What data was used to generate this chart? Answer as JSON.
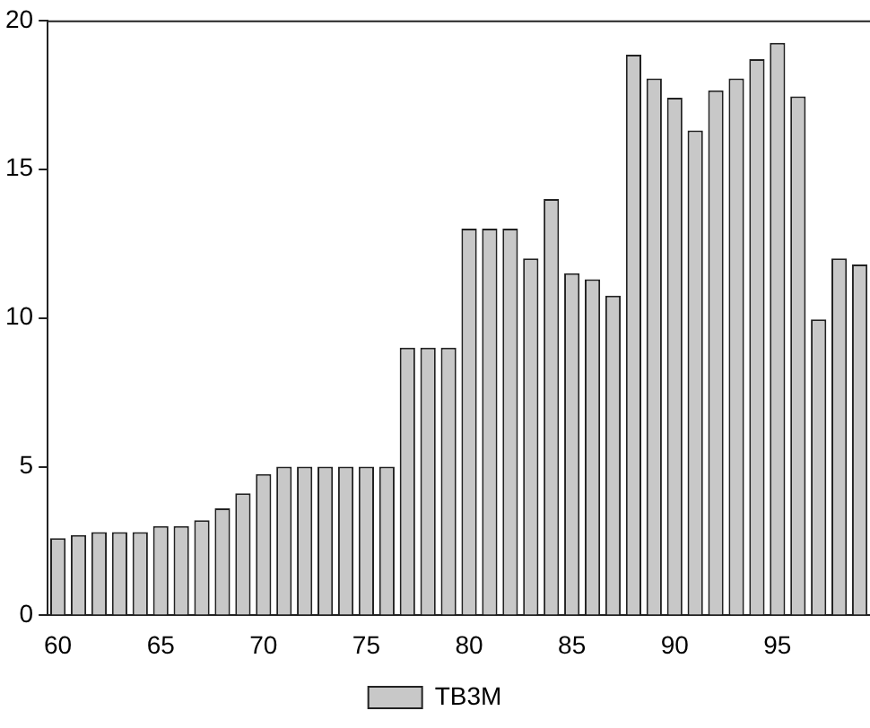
{
  "chart_data": {
    "type": "bar",
    "categories": [
      "60",
      null,
      null,
      null,
      null,
      "65",
      null,
      null,
      null,
      null,
      "70",
      null,
      null,
      null,
      null,
      "75",
      null,
      null,
      null,
      null,
      "80",
      null,
      null,
      null,
      null,
      "85",
      null,
      null,
      null,
      null,
      "90",
      null,
      null,
      null,
      null,
      "95",
      null,
      null,
      null,
      null
    ],
    "series": [
      {
        "name": "TB3M",
        "color": "#c8c8c8",
        "values": [
          2.6,
          2.7,
          2.8,
          2.8,
          2.8,
          3.0,
          3.0,
          3.2,
          3.6,
          4.1,
          4.75,
          5.0,
          5.0,
          5.0,
          5.0,
          5.0,
          5.0,
          9.0,
          9.0,
          9.0,
          13.0,
          13.0,
          13.0,
          12.0,
          14.0,
          11.5,
          11.3,
          10.75,
          18.85,
          18.05,
          17.4,
          16.3,
          17.65,
          18.05,
          18.7,
          19.25,
          17.45,
          9.95,
          12.0,
          11.8
        ]
      }
    ],
    "ylim": [
      0,
      20
    ],
    "yticks": [
      0,
      5,
      10,
      15,
      20
    ],
    "grid": false,
    "legend": "bottom"
  }
}
